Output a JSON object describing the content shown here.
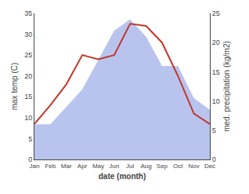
{
  "chart_data": {
    "type": "line",
    "categories": [
      "Jan",
      "Feb",
      "Mar",
      "Apr",
      "May",
      "Jun",
      "Jul",
      "Aug",
      "Sep",
      "Oct",
      "Nov",
      "Dec"
    ],
    "series": [
      {
        "type": "area",
        "color": "#b8c4ee",
        "axis": "y2",
        "values": [
          6.0,
          6.0,
          9.0,
          12.0,
          17.0,
          22.0,
          24.0,
          21.0,
          16.0,
          16.0,
          10.5,
          8.5
        ]
      },
      {
        "type": "line",
        "color": "#c0392b",
        "values": [
          8.5,
          13.0,
          18.0,
          25.0,
          24.0,
          25.0,
          32.5,
          32.0,
          28.0,
          20.0,
          11.0,
          8.5
        ]
      }
    ],
    "xlabel": "date (month)",
    "ylabel": "max temp (C)",
    "y2label": "med. precipitation (kg/m2)",
    "ylim": [
      0,
      35
    ],
    "yticks": [
      0,
      5,
      10,
      15,
      20,
      25,
      30,
      35
    ],
    "y2lim": [
      0,
      25
    ],
    "y2ticks": [
      0,
      5,
      10,
      15,
      20,
      25
    ],
    "grid": false
  }
}
